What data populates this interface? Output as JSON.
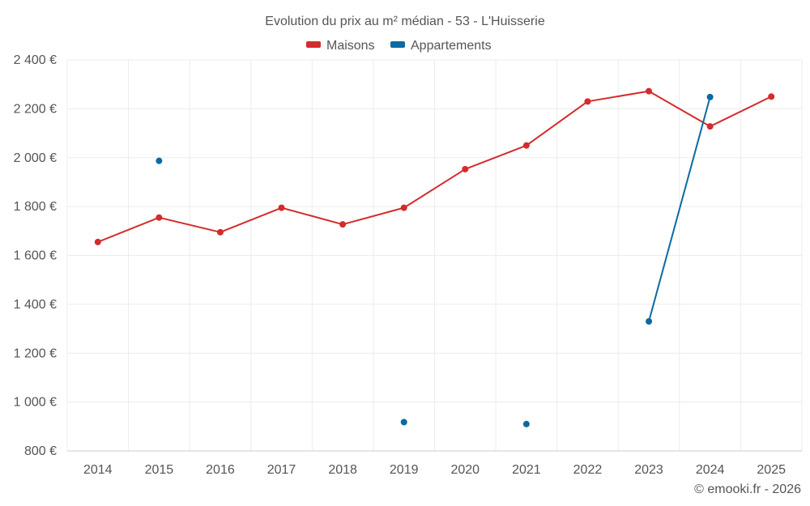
{
  "chart_data": {
    "type": "line",
    "title": "Evolution du prix au m² médian - 53 - L'Huisserie",
    "credit": "© emooki.fr - 2026",
    "categories": [
      "2014",
      "2015",
      "2016",
      "2017",
      "2018",
      "2019",
      "2020",
      "2021",
      "2022",
      "2023",
      "2024",
      "2025"
    ],
    "y_ticks": [
      "800 €",
      "1 000 €",
      "1 200 €",
      "1 400 €",
      "1 600 €",
      "1 800 €",
      "2 000 €",
      "2 200 €",
      "2 400 €"
    ],
    "ylim": [
      800,
      2400
    ],
    "grid": true,
    "legend_position": "top-center",
    "series": [
      {
        "name": "Maisons",
        "color": "#d42b2b",
        "values": [
          1655,
          1755,
          1695,
          1795,
          1727,
          1795,
          1953,
          2050,
          2230,
          2272,
          2128,
          2250
        ]
      },
      {
        "name": "Appartements",
        "color": "#0a6aa1",
        "values": [
          null,
          1987,
          null,
          null,
          null,
          918,
          null,
          910,
          null,
          1330,
          2248,
          null
        ]
      }
    ]
  }
}
